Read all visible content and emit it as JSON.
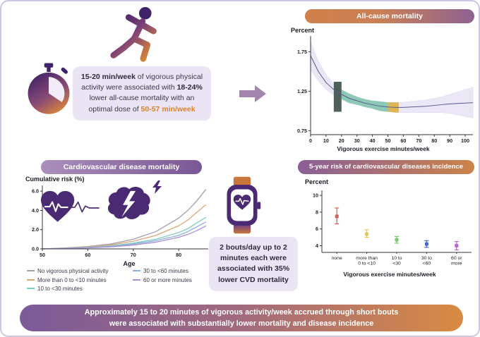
{
  "top_left": {
    "message": {
      "seg1": "15-20 min/week",
      "seg2": " of vigorous physical activity were associated with ",
      "seg3": "18-24%",
      "seg4": " lower all-cause mortality with an optimal dose of ",
      "seg5": "50-57 min/week"
    }
  },
  "all_cause": {
    "title": "All-cause mortality",
    "ylabel": "Percent",
    "xlabel": "Vigorous exercise minutes/week"
  },
  "cvd_mortality": {
    "title": "Cardiovascular disease mortality",
    "ylabel": "Cumulative risk (%)",
    "xlabel": "Age",
    "legend": [
      "No vigorous physical activity",
      "More than 0 to <10 minutes",
      "10 to <30 minutes",
      "30 to <60 minutes",
      "60 or more minutes"
    ]
  },
  "incidence": {
    "title": "5-year risk of cardiovascular diseases incidence",
    "ylabel": "Percent",
    "xlabel": "Vigorous exercise minutes/week"
  },
  "center_box": {
    "seg1": "2 bouts/day up to 2 minutes each",
    "seg2": " were associated with ",
    "seg3": "35%",
    "seg4": " lower CVD mortality"
  },
  "banner": {
    "line1": "Approximately 15 to 20 minutes of vigorous activity/week accrued through short bouts",
    "line2": "were associated with substantially lower mortality and disease incidence"
  },
  "colors": {
    "purple": "#4a2a72",
    "orange": "#d9822b",
    "mauve_arrow": "#a284ac",
    "box_lavender": "#eae4f4",
    "ci_band": "#ebe7f7"
  },
  "chart_data": [
    {
      "id": "all_cause_mortality_curve",
      "type": "line",
      "title": "All-cause mortality",
      "xlabel": "Vigorous exercise minutes/week",
      "ylabel": "Percent",
      "xlim": [
        0,
        105
      ],
      "ylim": [
        0.7,
        1.95
      ],
      "xticks": [
        0,
        10,
        20,
        30,
        40,
        50,
        60,
        70,
        80,
        90,
        100
      ],
      "yticks": [
        0.75,
        1.25,
        1.75
      ],
      "x": [
        0,
        5,
        10,
        15,
        20,
        25,
        30,
        35,
        40,
        45,
        50,
        55,
        60,
        65,
        70,
        75,
        80,
        85,
        90,
        95,
        100,
        105
      ],
      "mean": [
        1.7,
        1.5,
        1.36,
        1.27,
        1.21,
        1.16,
        1.13,
        1.1,
        1.08,
        1.06,
        1.05,
        1.045,
        1.045,
        1.05,
        1.055,
        1.06,
        1.07,
        1.08,
        1.09,
        1.095,
        1.1,
        1.105
      ],
      "upper": [
        1.88,
        1.63,
        1.46,
        1.34,
        1.27,
        1.22,
        1.18,
        1.15,
        1.13,
        1.12,
        1.11,
        1.11,
        1.11,
        1.12,
        1.13,
        1.14,
        1.16,
        1.18,
        1.21,
        1.24,
        1.27,
        1.3
      ],
      "lower": [
        1.52,
        1.38,
        1.27,
        1.2,
        1.15,
        1.1,
        1.08,
        1.05,
        1.03,
        1.0,
        0.99,
        0.98,
        0.98,
        0.98,
        0.98,
        0.98,
        0.98,
        0.98,
        0.97,
        0.95,
        0.93,
        0.91
      ],
      "highlights": [
        {
          "label": "15-20 min/week",
          "x0": 15,
          "x1": 20,
          "y0": 0.99,
          "y1": 1.37,
          "color": "#45594e",
          "opacity": 0.95
        },
        {
          "label": "20-50 min/week",
          "x0": 20,
          "x1": 50,
          "color": "#7cc3ab",
          "opacity": 0.85
        },
        {
          "label": "50-57 min/week optimal dose",
          "x0": 50,
          "x1": 57,
          "color": "#dcb44e",
          "opacity": 0.95
        }
      ]
    },
    {
      "id": "cvd_cumulative_risk",
      "type": "line",
      "title": "Cardiovascular disease mortality",
      "xlabel": "Age",
      "ylabel": "Cumulative risk (%)",
      "xlim": [
        50,
        86.5
      ],
      "ylim": [
        0,
        6.6
      ],
      "xticks": [
        50,
        60,
        70,
        80
      ],
      "yticks": [
        0.0,
        2.0,
        4.0,
        6.0
      ],
      "x": [
        50,
        55,
        60,
        65,
        70,
        75,
        80,
        82,
        84,
        86
      ],
      "series": [
        {
          "name": "No vigorous physical activity",
          "color": "#a49cb0",
          "values": [
            0,
            0.1,
            0.25,
            0.5,
            1.0,
            1.8,
            3.2,
            4.0,
            5.0,
            6.2
          ]
        },
        {
          "name": "More than 0 to <10 minutes",
          "color": "#d9a878",
          "values": [
            0,
            0.08,
            0.2,
            0.4,
            0.8,
            1.4,
            2.4,
            3.0,
            3.8,
            4.6
          ]
        },
        {
          "name": "10 to <30 minutes",
          "color": "#7ccdbd",
          "values": [
            0,
            0.06,
            0.15,
            0.3,
            0.6,
            1.0,
            1.7,
            2.1,
            2.7,
            3.3
          ]
        },
        {
          "name": "30 to <60 minutes",
          "color": "#8fb0dd",
          "values": [
            0,
            0.05,
            0.12,
            0.25,
            0.5,
            0.85,
            1.4,
            1.8,
            2.3,
            2.8
          ]
        },
        {
          "name": "60 or more minutes",
          "color": "#ab8fd6",
          "values": [
            0,
            0.04,
            0.1,
            0.2,
            0.4,
            0.7,
            1.2,
            1.5,
            1.9,
            2.4
          ]
        }
      ]
    },
    {
      "id": "cvd_incidence_5yr_risk",
      "type": "scatter",
      "title": "5-year risk of cardiovascular diseases incidence",
      "xlabel": "Vigorous exercise minutes/week",
      "ylabel": "Percent",
      "ylim": [
        3.2,
        10.6
      ],
      "yticks": [
        4,
        6,
        8,
        10
      ],
      "categories": [
        [
          "none"
        ],
        [
          "more than",
          "0 to <10"
        ],
        [
          "10 to",
          "<30"
        ],
        [
          "30 to",
          "<60"
        ],
        [
          "60 or",
          "more"
        ]
      ],
      "values": [
        7.5,
        5.4,
        4.7,
        4.2,
        4.0
      ],
      "ci_low": [
        6.6,
        5.0,
        4.3,
        3.8,
        3.5
      ],
      "ci_high": [
        8.5,
        5.9,
        5.1,
        4.6,
        4.5
      ],
      "colors": [
        "#e05a5a",
        "#e6c94f",
        "#7cc470",
        "#4a66c0",
        "#b468c8"
      ]
    }
  ]
}
